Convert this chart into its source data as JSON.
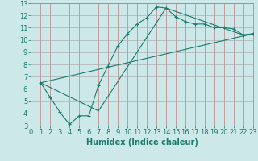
{
  "xlabel": "Humidex (Indice chaleur)",
  "ylabel": "",
  "xlim": [
    0,
    23
  ],
  "ylim": [
    3,
    13
  ],
  "xticks": [
    0,
    1,
    2,
    3,
    4,
    5,
    6,
    7,
    8,
    9,
    10,
    11,
    12,
    13,
    14,
    15,
    16,
    17,
    18,
    19,
    20,
    21,
    22,
    23
  ],
  "yticks": [
    3,
    4,
    5,
    6,
    7,
    8,
    9,
    10,
    11,
    12,
    13
  ],
  "bg_color": "#cce8e8",
  "grid_color": "#b0b0b0",
  "line_color": "#1a7a6e",
  "line1_x": [
    1,
    2,
    3,
    4,
    5,
    6,
    7,
    8,
    9,
    10,
    11,
    12,
    13,
    14,
    15,
    16,
    17,
    18,
    19,
    20,
    21,
    22,
    23
  ],
  "line1_y": [
    6.5,
    5.3,
    4.1,
    3.1,
    3.8,
    3.8,
    6.3,
    7.9,
    9.5,
    10.5,
    11.3,
    11.8,
    12.7,
    12.6,
    11.9,
    11.5,
    11.3,
    11.3,
    11.0,
    11.0,
    10.9,
    10.4,
    10.5
  ],
  "line2_x": [
    1,
    7,
    14,
    22,
    23
  ],
  "line2_y": [
    6.5,
    4.2,
    12.6,
    10.4,
    10.5
  ],
  "line3_x": [
    1,
    23
  ],
  "line3_y": [
    6.5,
    10.5
  ],
  "font_size": 6,
  "marker": "+"
}
